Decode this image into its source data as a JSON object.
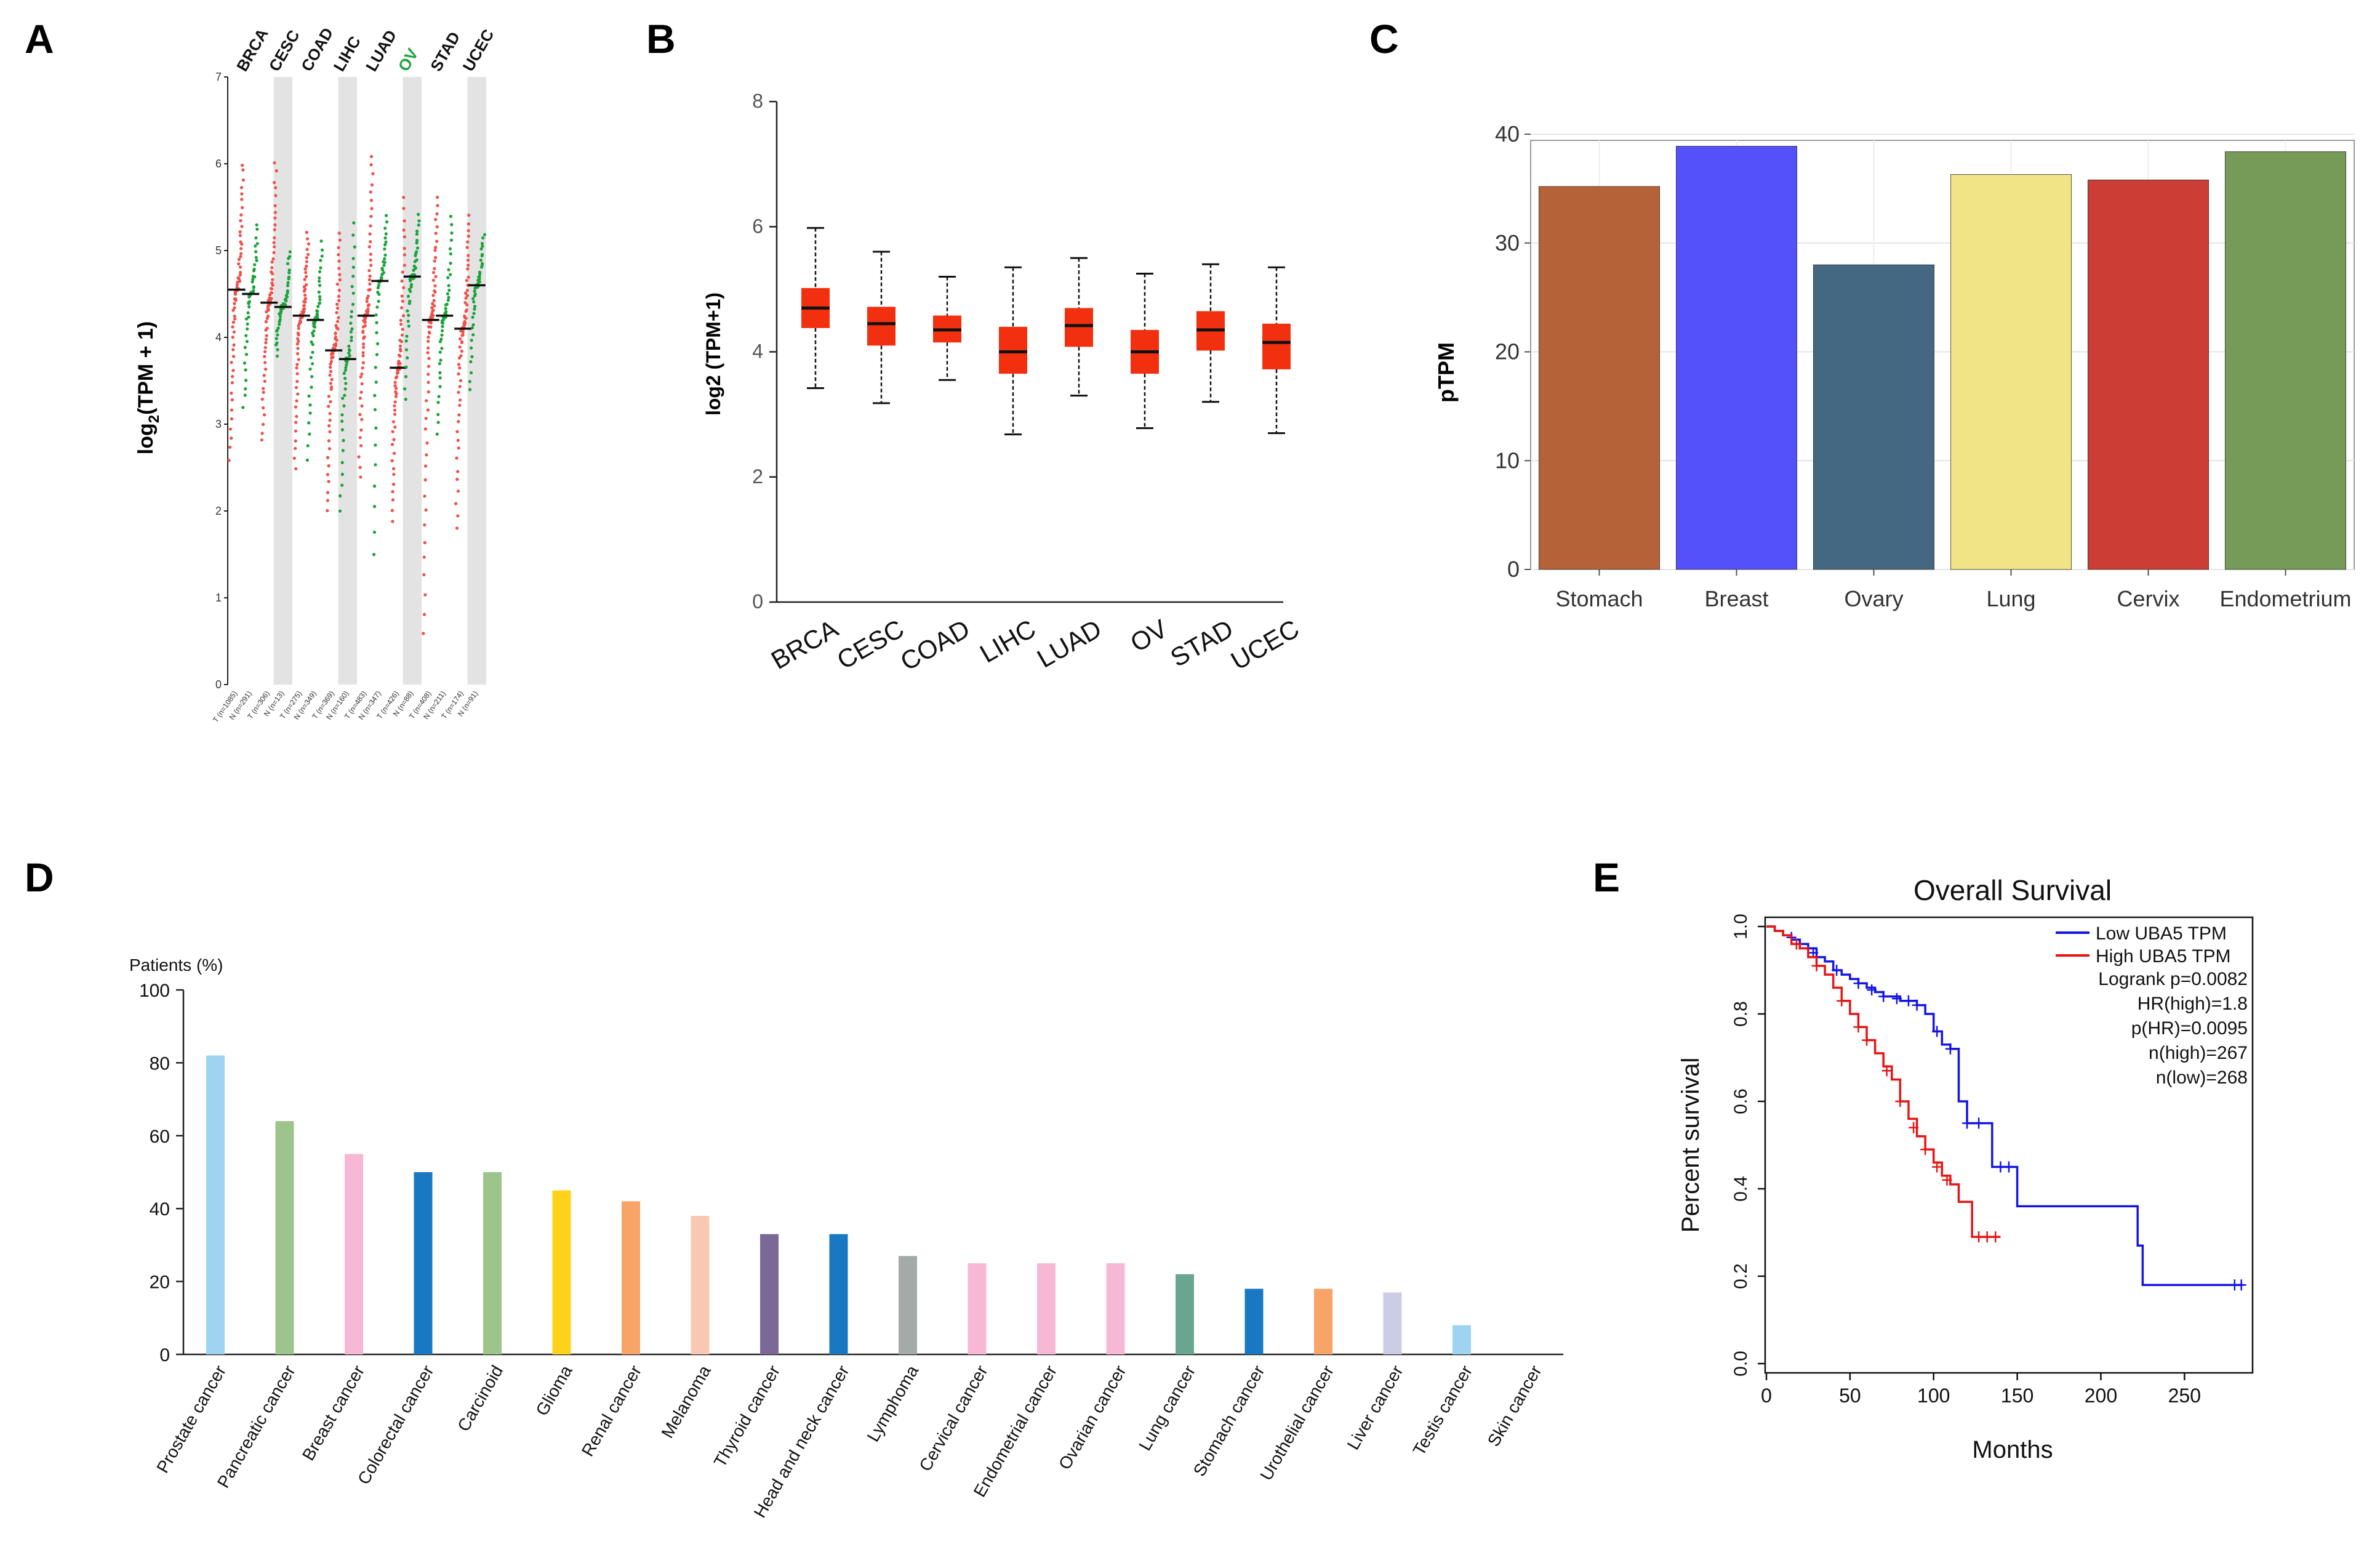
{
  "panels": {
    "A": {
      "letter": "A",
      "ylabel_main": "log",
      "ylabel_sub": "2",
      "ylabel_rest": "(TPM + 1)",
      "ylim": [
        0,
        7
      ],
      "yticks": [
        "0",
        "1",
        "2",
        "3",
        "4",
        "5",
        "6",
        "7"
      ],
      "colors": {
        "tumor": "#f0504a",
        "normal": "#1aa33a",
        "band": "#e3e3e3",
        "ov_label": "#19a33a"
      },
      "cancers": [
        {
          "name": "BRCA",
          "tumor_label": "T (n=1085)",
          "normal_label": "N (n=291)",
          "tumor_median": 4.55,
          "normal_median": 4.5,
          "tumor_range": [
            2.6,
            6.0
          ],
          "normal_range": [
            3.2,
            5.3
          ]
        },
        {
          "name": "CESC",
          "tumor_label": "T (n=306)",
          "normal_label": "N (n=13)",
          "tumor_median": 4.4,
          "normal_median": 4.35,
          "tumor_range": [
            2.8,
            6.0
          ],
          "normal_range": [
            3.8,
            5.0
          ]
        },
        {
          "name": "COAD",
          "tumor_label": "T (n=275)",
          "normal_label": "N (n=349)",
          "tumor_median": 4.25,
          "normal_median": 4.2,
          "tumor_range": [
            2.5,
            5.2
          ],
          "normal_range": [
            2.6,
            5.1
          ]
        },
        {
          "name": "LIHC",
          "tumor_label": "T (n=369)",
          "normal_label": "N (n=160)",
          "tumor_median": 3.85,
          "normal_median": 3.75,
          "tumor_range": [
            2.0,
            5.2
          ],
          "normal_range": [
            2.0,
            5.3
          ]
        },
        {
          "name": "LUAD",
          "tumor_label": "T (n=483)",
          "normal_label": "N (n=347)",
          "tumor_median": 4.25,
          "normal_median": 4.65,
          "tumor_range": [
            2.4,
            6.1
          ],
          "normal_range": [
            1.5,
            5.4
          ]
        },
        {
          "name": "OV",
          "tumor_label": "T (n=426)",
          "normal_label": "N (n=88)",
          "tumor_median": 3.65,
          "normal_median": 4.7,
          "tumor_range": [
            1.9,
            5.6
          ],
          "normal_range": [
            3.3,
            5.4
          ]
        },
        {
          "name": "STAD",
          "tumor_label": "T (n=408)",
          "normal_label": "N (n=211)",
          "tumor_median": 4.2,
          "normal_median": 4.25,
          "tumor_range": [
            0.6,
            5.6
          ],
          "normal_range": [
            2.9,
            5.4
          ]
        },
        {
          "name": "UCEC",
          "tumor_label": "T (n=174)",
          "normal_label": "N (n=91)",
          "tumor_median": 4.1,
          "normal_median": 4.6,
          "tumor_range": [
            1.8,
            5.4
          ],
          "normal_range": [
            3.4,
            5.2
          ]
        }
      ]
    },
    "B": {
      "letter": "B",
      "ylabel": "log2 (TPM+1)",
      "ylim": [
        0,
        8
      ],
      "yticks": [
        "0",
        "2",
        "4",
        "6",
        "8"
      ],
      "box_color": "#f2300f",
      "boxes": [
        {
          "name": "BRCA",
          "min": 3.42,
          "q1": 4.38,
          "median": 4.7,
          "q3": 5.02,
          "max": 5.98
        },
        {
          "name": "CESC",
          "min": 3.18,
          "q1": 4.1,
          "median": 4.45,
          "q3": 4.72,
          "max": 5.6
        },
        {
          "name": "COAD",
          "min": 3.55,
          "q1": 4.15,
          "median": 4.35,
          "q3": 4.58,
          "max": 5.2
        },
        {
          "name": "LIHC",
          "min": 2.68,
          "q1": 3.65,
          "median": 4.0,
          "q3": 4.4,
          "max": 5.35
        },
        {
          "name": "LUAD",
          "min": 3.3,
          "q1": 4.08,
          "median": 4.42,
          "q3": 4.7,
          "max": 5.5
        },
        {
          "name": "OV",
          "min": 2.78,
          "q1": 3.65,
          "median": 4.0,
          "q3": 4.35,
          "max": 5.25
        },
        {
          "name": "STAD",
          "min": 3.2,
          "q1": 4.02,
          "median": 4.35,
          "q3": 4.65,
          "max": 5.4
        },
        {
          "name": "UCEC",
          "min": 2.7,
          "q1": 3.72,
          "median": 4.15,
          "q3": 4.45,
          "max": 5.35
        }
      ]
    },
    "C": {
      "letter": "C",
      "ylabel": "pTPM",
      "ylim": [
        0,
        40
      ],
      "yticks": [
        "0",
        "10",
        "20",
        "30",
        "40"
      ],
      "bars": [
        {
          "name": "Stomach",
          "value": 35.2,
          "color": "#b56238"
        },
        {
          "name": "Breast",
          "value": 38.9,
          "color": "#5551fa"
        },
        {
          "name": "Ovary",
          "value": 28.0,
          "color": "#456882"
        },
        {
          "name": "Lung",
          "value": 36.3,
          "color": "#f0e486"
        },
        {
          "name": "Cervix",
          "value": 35.8,
          "color": "#cb3d35"
        },
        {
          "name": "Endometrium",
          "value": 38.4,
          "color": "#769a57"
        }
      ]
    },
    "D": {
      "letter": "D",
      "ylabel": "Patients (%)",
      "ylim": [
        0,
        100
      ],
      "yticks": [
        "0",
        "20",
        "40",
        "60",
        "80",
        "100"
      ],
      "bars": [
        {
          "name": "Prostate cancer",
          "value": 82,
          "color": "#9fd3f2"
        },
        {
          "name": "Pancreatic cancer",
          "value": 64,
          "color": "#9dc48a"
        },
        {
          "name": "Breast cancer",
          "value": 55,
          "color": "#f7b8d6"
        },
        {
          "name": "Colorectal cancer",
          "value": 50,
          "color": "#1878c2"
        },
        {
          "name": "Carcinoid",
          "value": 50,
          "color": "#9dc48a"
        },
        {
          "name": "Glioma",
          "value": 45,
          "color": "#ffd21a"
        },
        {
          "name": "Renal cancer",
          "value": 42,
          "color": "#f8a468"
        },
        {
          "name": "Melanoma",
          "value": 38,
          "color": "#f9c8b2"
        },
        {
          "name": "Thyroid cancer",
          "value": 33,
          "color": "#7a6896"
        },
        {
          "name": "Head and neck cancer",
          "value": 33,
          "color": "#1878c2"
        },
        {
          "name": "Lymphoma",
          "value": 27,
          "color": "#a4aaa8"
        },
        {
          "name": "Cervical cancer",
          "value": 25,
          "color": "#f7b8d6"
        },
        {
          "name": "Endometrial cancer",
          "value": 25,
          "color": "#f7b8d6"
        },
        {
          "name": "Ovarian cancer",
          "value": 25,
          "color": "#f7b8d6"
        },
        {
          "name": "Lung cancer",
          "value": 22,
          "color": "#6aa68f"
        },
        {
          "name": "Stomach cancer",
          "value": 18,
          "color": "#1878c2"
        },
        {
          "name": "Urothelial cancer",
          "value": 18,
          "color": "#f8a468"
        },
        {
          "name": "Liver cancer",
          "value": 17,
          "color": "#cccce6"
        },
        {
          "name": "Testis cancer",
          "value": 8,
          "color": "#9fd3f2"
        },
        {
          "name": "Skin cancer",
          "value": 0,
          "color": "#9fd3f2"
        }
      ]
    },
    "E": {
      "letter": "E",
      "title": "Overall Survival",
      "xlabel": "Months",
      "ylabel": "Percent survival",
      "xlim": [
        0,
        290
      ],
      "ylim": [
        0,
        1
      ],
      "xticks": [
        "0",
        "50",
        "100",
        "150",
        "200",
        "250"
      ],
      "yticks": [
        "0.0",
        "0.2",
        "0.4",
        "0.6",
        "0.8",
        "1.0"
      ],
      "legend": [
        {
          "label": "Low UBA5 TPM",
          "color": "#1414e6"
        },
        {
          "label": "High UBA5 TPM",
          "color": "#e61414"
        }
      ],
      "stats": [
        "Logrank p=0.0082",
        "HR(high)=1.8",
        "p(HR)=0.0095",
        "n(high)=267",
        "n(low)=268"
      ],
      "low": {
        "color": "#1414e6",
        "steps": [
          [
            0,
            1.0
          ],
          [
            5,
            0.99
          ],
          [
            10,
            0.98
          ],
          [
            15,
            0.97
          ],
          [
            20,
            0.96
          ],
          [
            25,
            0.95
          ],
          [
            30,
            0.93
          ],
          [
            35,
            0.92
          ],
          [
            40,
            0.9
          ],
          [
            45,
            0.89
          ],
          [
            50,
            0.88
          ],
          [
            55,
            0.87
          ],
          [
            60,
            0.86
          ],
          [
            65,
            0.85
          ],
          [
            70,
            0.84
          ],
          [
            75,
            0.84
          ],
          [
            80,
            0.83
          ],
          [
            85,
            0.83
          ],
          [
            90,
            0.82
          ],
          [
            95,
            0.8
          ],
          [
            100,
            0.76
          ],
          [
            105,
            0.73
          ],
          [
            110,
            0.72
          ],
          [
            115,
            0.6
          ],
          [
            120,
            0.55
          ],
          [
            130,
            0.55
          ],
          [
            135,
            0.45
          ],
          [
            145,
            0.45
          ],
          [
            150,
            0.36
          ],
          [
            218,
            0.36
          ],
          [
            222,
            0.27
          ],
          [
            225,
            0.18
          ],
          [
            285,
            0.18
          ]
        ],
        "censors": [
          [
            15,
            0.975
          ],
          [
            28,
            0.94
          ],
          [
            42,
            0.9
          ],
          [
            55,
            0.87
          ],
          [
            63,
            0.855
          ],
          [
            70,
            0.84
          ],
          [
            78,
            0.835
          ],
          [
            85,
            0.83
          ],
          [
            90,
            0.82
          ],
          [
            102,
            0.76
          ],
          [
            110,
            0.72
          ],
          [
            120,
            0.55
          ],
          [
            127,
            0.55
          ],
          [
            140,
            0.45
          ],
          [
            145,
            0.45
          ],
          [
            280,
            0.18
          ],
          [
            284,
            0.18
          ]
        ]
      },
      "high": {
        "color": "#e61414",
        "steps": [
          [
            0,
            1.0
          ],
          [
            5,
            0.99
          ],
          [
            10,
            0.98
          ],
          [
            15,
            0.96
          ],
          [
            20,
            0.95
          ],
          [
            25,
            0.93
          ],
          [
            30,
            0.91
          ],
          [
            35,
            0.89
          ],
          [
            40,
            0.86
          ],
          [
            45,
            0.83
          ],
          [
            50,
            0.8
          ],
          [
            55,
            0.77
          ],
          [
            60,
            0.74
          ],
          [
            65,
            0.71
          ],
          [
            70,
            0.68
          ],
          [
            75,
            0.65
          ],
          [
            80,
            0.6
          ],
          [
            85,
            0.56
          ],
          [
            90,
            0.52
          ],
          [
            95,
            0.49
          ],
          [
            100,
            0.46
          ],
          [
            105,
            0.43
          ],
          [
            110,
            0.41
          ],
          [
            115,
            0.37
          ],
          [
            123,
            0.29
          ],
          [
            140,
            0.29
          ]
        ],
        "censors": [
          [
            18,
            0.96
          ],
          [
            30,
            0.91
          ],
          [
            45,
            0.83
          ],
          [
            55,
            0.77
          ],
          [
            60,
            0.74
          ],
          [
            72,
            0.67
          ],
          [
            80,
            0.6
          ],
          [
            88,
            0.54
          ],
          [
            95,
            0.49
          ],
          [
            102,
            0.45
          ],
          [
            108,
            0.42
          ],
          [
            127,
            0.29
          ],
          [
            132,
            0.29
          ],
          [
            137,
            0.29
          ]
        ]
      }
    }
  }
}
